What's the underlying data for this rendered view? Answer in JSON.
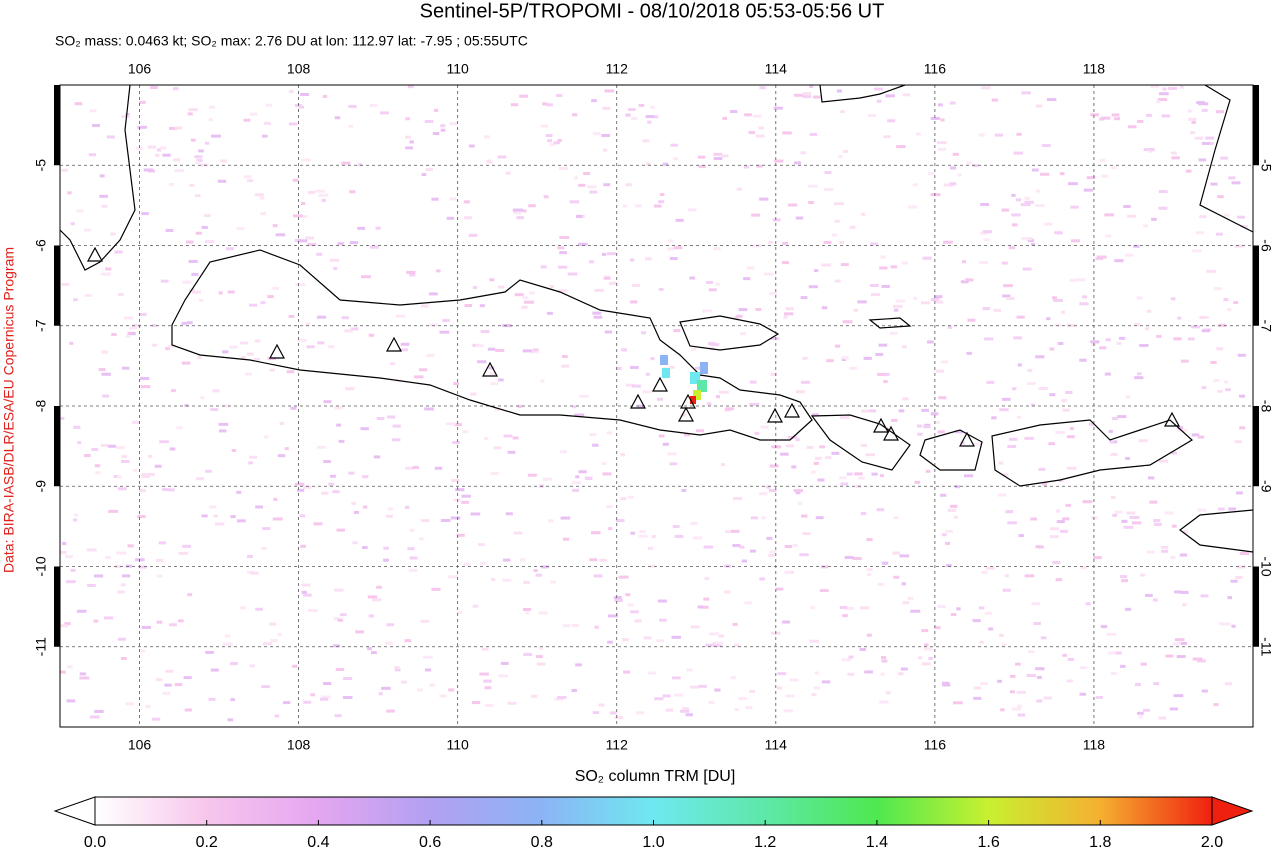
{
  "chart_data": {
    "type": "map",
    "title": "Sentinel-5P/TROPOMI - 08/10/2018 05:53-05:56 UT",
    "subtitle": "SO₂ mass: 0.0463 kt; SO₂ max: 2.76 DU at lon: 112.97 lat: -7.95 ; 05:55UTC",
    "credit": "Data: BIRA-IASB/DLR/ESA/EU Copernicus Program",
    "xlim": [
      105,
      120
    ],
    "ylim": [
      -12,
      -4
    ],
    "xticks": [
      106,
      108,
      110,
      112,
      114,
      116,
      118
    ],
    "yticks": [
      -5,
      -6,
      -7,
      -8,
      -9,
      -10,
      -11
    ],
    "grid": true,
    "colorbar": {
      "label": "SO₂ column TRM [DU]",
      "lim": [
        0,
        2
      ],
      "ticks": [
        {
          "value": 0,
          "label": "0.0"
        },
        {
          "value": 0.2,
          "label": "0.2"
        },
        {
          "value": 0.4,
          "label": "0.4"
        },
        {
          "value": 0.6,
          "label": "0.6"
        },
        {
          "value": 0.8,
          "label": "0.8"
        },
        {
          "value": 1,
          "label": "1.0"
        },
        {
          "value": 1.2,
          "label": "1.2"
        },
        {
          "value": 1.4,
          "label": "1.4"
        },
        {
          "value": 1.6,
          "label": "1.6"
        },
        {
          "value": 1.8,
          "label": "1.8"
        },
        {
          "value": 2,
          "label": "2.0"
        }
      ],
      "colors": [
        "#ffffff",
        "#f7c6ec",
        "#e4a6f0",
        "#b2a0f2",
        "#8cb4f5",
        "#6ee8f0",
        "#5ee8a8",
        "#4ee850",
        "#c8f030",
        "#f5b030",
        "#f02010"
      ]
    }
  }
}
